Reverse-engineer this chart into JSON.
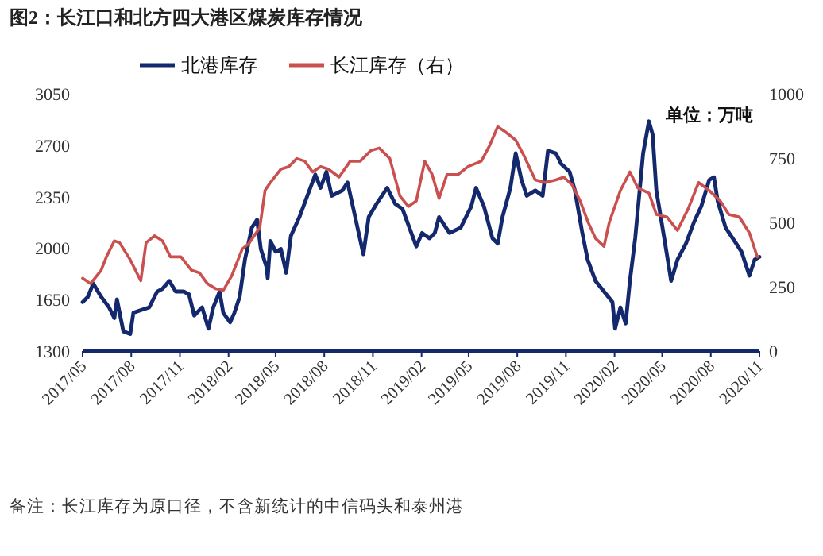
{
  "chart_data": {
    "type": "line",
    "title": "图2：长江口和北方四大港区煤炭库存情况",
    "annotations": [
      "单位：万吨",
      "备注：长江库存为原口径，不含新统计的中信码头和泰州港"
    ],
    "legend": "top",
    "xlim": [
      "2017-05-01",
      "2020-11-01"
    ],
    "xticks": [
      {
        "value": "2017-05-01",
        "label": "2017/05"
      },
      {
        "value": "2017-08-01",
        "label": "2017/08"
      },
      {
        "value": "2017-11-01",
        "label": "2017/11"
      },
      {
        "value": "2018-02-01",
        "label": "2018/02"
      },
      {
        "value": "2018-05-01",
        "label": "2018/05"
      },
      {
        "value": "2018-08-01",
        "label": "2018/08"
      },
      {
        "value": "2018-11-01",
        "label": "2018/11"
      },
      {
        "value": "2019-02-01",
        "label": "2019/02"
      },
      {
        "value": "2019-05-01",
        "label": "2019/05"
      },
      {
        "value": "2019-08-01",
        "label": "2019/08"
      },
      {
        "value": "2019-11-01",
        "label": "2019/11"
      },
      {
        "value": "2020-02-01",
        "label": "2020/02"
      },
      {
        "value": "2020-05-01",
        "label": "2020/05"
      },
      {
        "value": "2020-08-01",
        "label": "2020/08"
      },
      {
        "value": "2020-11-01",
        "label": "2020/11"
      }
    ],
    "ylim": [
      1300,
      3050
    ],
    "yticks": [
      1300,
      1650,
      2000,
      2350,
      2700,
      3050
    ],
    "y2lim": [
      0,
      1000
    ],
    "y2ticks": [
      0,
      250,
      500,
      750,
      1000
    ],
    "series": [
      {
        "name": "北港库存",
        "color": "#14286e",
        "axis": "y",
        "x": [
          "2017-05-01",
          "2017-05-11",
          "2017-05-21",
          "2017-06-05",
          "2017-06-20",
          "2017-06-30",
          "2017-07-05",
          "2017-07-17",
          "2017-07-30",
          "2017-08-05",
          "2017-08-19",
          "2017-09-04",
          "2017-09-19",
          "2017-09-29",
          "2017-10-12",
          "2017-10-24",
          "2017-11-08",
          "2017-11-18",
          "2017-11-28",
          "2017-12-13",
          "2017-12-25",
          "2018-01-03",
          "2018-01-15",
          "2018-01-22",
          "2018-02-04",
          "2018-02-12",
          "2018-02-22",
          "2018-03-04",
          "2018-03-17",
          "2018-03-27",
          "2018-04-03",
          "2018-04-14",
          "2018-04-16",
          "2018-04-21",
          "2018-05-01",
          "2018-05-11",
          "2018-05-21",
          "2018-05-30",
          "2018-06-15",
          "2018-06-30",
          "2018-07-15",
          "2018-07-25",
          "2018-08-05",
          "2018-08-15",
          "2018-09-04",
          "2018-09-14",
          "2018-09-24",
          "2018-10-14",
          "2018-10-24",
          "2018-11-08",
          "2018-11-28",
          "2018-12-13",
          "2018-12-27",
          "2019-01-22",
          "2019-02-02",
          "2019-02-16",
          "2019-02-26",
          "2019-03-06",
          "2019-03-26",
          "2019-04-16",
          "2019-05-06",
          "2019-05-15",
          "2019-05-30",
          "2019-06-15",
          "2019-06-25",
          "2019-07-04",
          "2019-07-19",
          "2019-07-29",
          "2019-08-09",
          "2019-08-19",
          "2019-09-04",
          "2019-09-18",
          "2019-09-28",
          "2019-10-13",
          "2019-10-23",
          "2019-11-08",
          "2019-11-18",
          "2019-12-02",
          "2019-12-12",
          "2019-12-27",
          "2020-01-12",
          "2020-01-28",
          "2020-02-02",
          "2020-02-12",
          "2020-02-22",
          "2020-03-01",
          "2020-03-11",
          "2020-03-26",
          "2020-04-06",
          "2020-04-13",
          "2020-04-20",
          "2020-05-05",
          "2020-05-18",
          "2020-05-30",
          "2020-06-15",
          "2020-06-30",
          "2020-07-14",
          "2020-07-29",
          "2020-08-07",
          "2020-08-14",
          "2020-08-29",
          "2020-09-18",
          "2020-09-28",
          "2020-10-13",
          "2020-10-23",
          "2020-11-01"
        ],
        "values": [
          1633,
          1669,
          1759,
          1669,
          1597,
          1524,
          1651,
          1434,
          1416,
          1560,
          1578,
          1597,
          1705,
          1723,
          1777,
          1705,
          1705,
          1687,
          1542,
          1597,
          1452,
          1597,
          1705,
          1560,
          1495,
          1560,
          1669,
          1922,
          2139,
          2193,
          1994,
          1868,
          1795,
          2049,
          1976,
          1994,
          1832,
          2085,
          2211,
          2356,
          2500,
          2410,
          2519,
          2356,
          2392,
          2446,
          2284,
          1958,
          2211,
          2302,
          2410,
          2302,
          2266,
          2012,
          2103,
          2067,
          2103,
          2211,
          2103,
          2139,
          2284,
          2410,
          2284,
          2067,
          2031,
          2211,
          2410,
          2645,
          2464,
          2356,
          2392,
          2356,
          2663,
          2645,
          2573,
          2519,
          2392,
          2103,
          1922,
          1777,
          1705,
          1633,
          1452,
          1597,
          1488,
          1777,
          2067,
          2645,
          2862,
          2772,
          2392,
          2067,
          1777,
          1922,
          2031,
          2175,
          2284,
          2464,
          2482,
          2320,
          2139,
          2031,
          1976,
          1813,
          1922,
          1940
        ]
      },
      {
        "name": "长江库存（右）",
        "color": "#c9504f",
        "axis": "y2",
        "x": [
          "2017-05-01",
          "2017-05-16",
          "2017-06-05",
          "2017-06-15",
          "2017-06-30",
          "2017-07-10",
          "2017-07-30",
          "2017-08-19",
          "2017-08-29",
          "2017-09-14",
          "2017-09-29",
          "2017-10-14",
          "2017-11-03",
          "2017-11-23",
          "2017-12-08",
          "2017-12-23",
          "2018-01-08",
          "2018-01-22",
          "2018-02-07",
          "2018-02-27",
          "2018-03-11",
          "2018-04-01",
          "2018-04-11",
          "2018-04-21",
          "2018-05-11",
          "2018-05-26",
          "2018-06-10",
          "2018-06-25",
          "2018-07-10",
          "2018-07-25",
          "2018-08-09",
          "2018-08-29",
          "2018-09-19",
          "2018-10-08",
          "2018-10-28",
          "2018-11-13",
          "2018-12-03",
          "2018-12-22",
          "2019-01-07",
          "2019-01-22",
          "2019-02-07",
          "2019-02-21",
          "2019-03-06",
          "2019-03-21",
          "2019-04-11",
          "2019-04-30",
          "2019-05-25",
          "2019-06-10",
          "2019-06-25",
          "2019-07-10",
          "2019-07-29",
          "2019-08-14",
          "2019-09-04",
          "2019-09-23",
          "2019-10-13",
          "2019-10-28",
          "2019-11-13",
          "2019-11-28",
          "2019-12-13",
          "2019-12-27",
          "2020-01-12",
          "2020-01-22",
          "2020-02-12",
          "2020-03-01",
          "2020-03-16",
          "2020-04-06",
          "2020-04-20",
          "2020-05-10",
          "2020-05-30",
          "2020-06-19",
          "2020-07-09",
          "2020-07-29",
          "2020-08-19",
          "2020-09-04",
          "2020-09-24",
          "2020-10-13",
          "2020-10-28"
        ],
        "values": [
          283,
          262,
          314,
          366,
          428,
          421,
          355,
          273,
          421,
          448,
          428,
          366,
          366,
          314,
          304,
          262,
          242,
          236,
          293,
          397,
          417,
          479,
          624,
          655,
          707,
          717,
          748,
          738,
          696,
          717,
          707,
          676,
          738,
          738,
          779,
          789,
          748,
          603,
          562,
          583,
          738,
          686,
          593,
          686,
          686,
          717,
          738,
          800,
          872,
          851,
          820,
          758,
          665,
          655,
          665,
          676,
          645,
          583,
          500,
          438,
          407,
          500,
          624,
          696,
          634,
          614,
          531,
          521,
          469,
          552,
          655,
          624,
          583,
          531,
          521,
          459,
          366
        ]
      }
    ]
  }
}
